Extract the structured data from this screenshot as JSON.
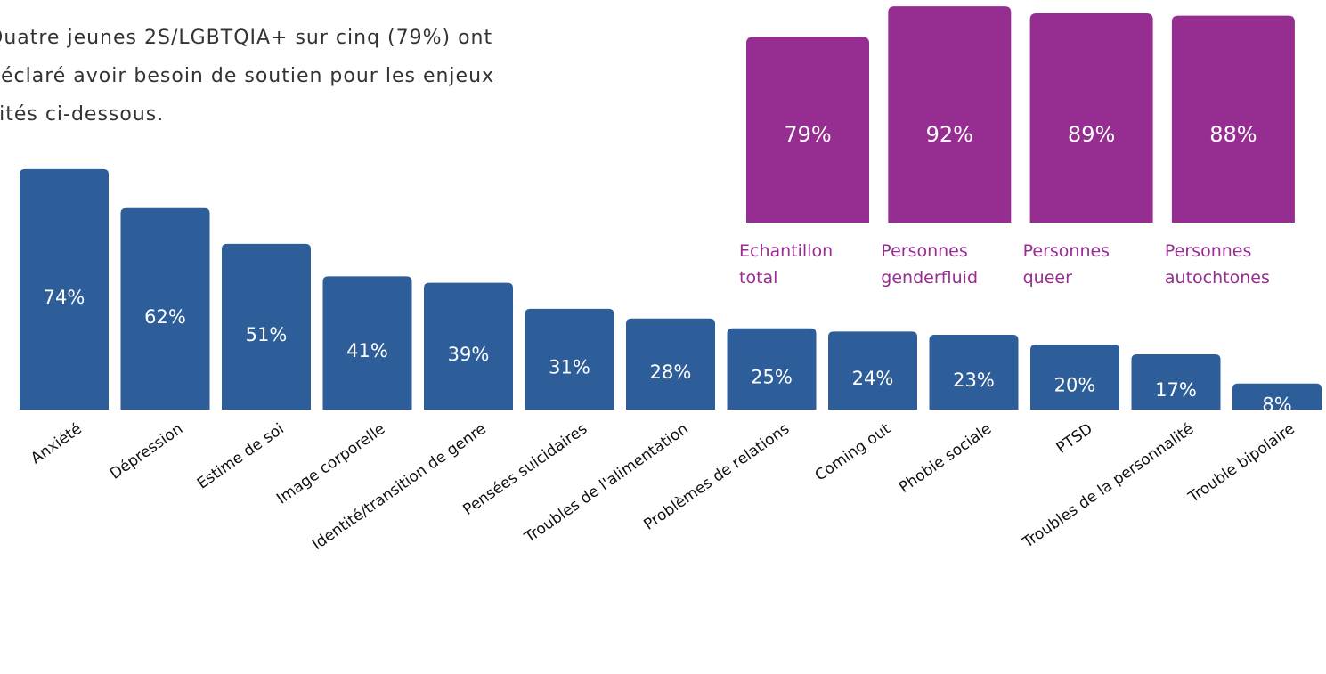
{
  "intro": {
    "lines": [
      "Quatre jeunes 2S/LGBTQIA+ sur cinq (79%) ont",
      "déclaré avoir besoin de soutien pour les enjeux",
      "cités ci-dessous."
    ]
  },
  "chart_data": [
    {
      "type": "bar",
      "color": "#2e5e99",
      "categories": [
        "Anxiété",
        "Dépression",
        "Estime de soi",
        "Image corporelle",
        "Identité/transition de genre",
        "Pensées suicidaires",
        "Troubles de l'alimentation",
        "Problèmes de relations",
        "Coming out",
        "Phobie sociale",
        "PTSD",
        "Troubles de la personnalité",
        "Trouble bipolaire"
      ],
      "values": [
        74,
        62,
        51,
        41,
        39,
        31,
        28,
        25,
        24,
        23,
        20,
        17,
        8
      ],
      "value_labels": [
        "74%",
        "62%",
        "51%",
        "41%",
        "39%",
        "31%",
        "28%",
        "25%",
        "24%",
        "23%",
        "20%",
        "17%",
        "8%"
      ]
    },
    {
      "type": "bar",
      "color": "#962d91",
      "categories": [
        "Echantillon total",
        "Personnes genderfluid",
        "Personnes queer",
        "Personnes autochtones"
      ],
      "values": [
        79,
        92,
        89,
        88
      ],
      "value_labels": [
        "79%",
        "92%",
        "89%",
        "88%"
      ]
    }
  ]
}
